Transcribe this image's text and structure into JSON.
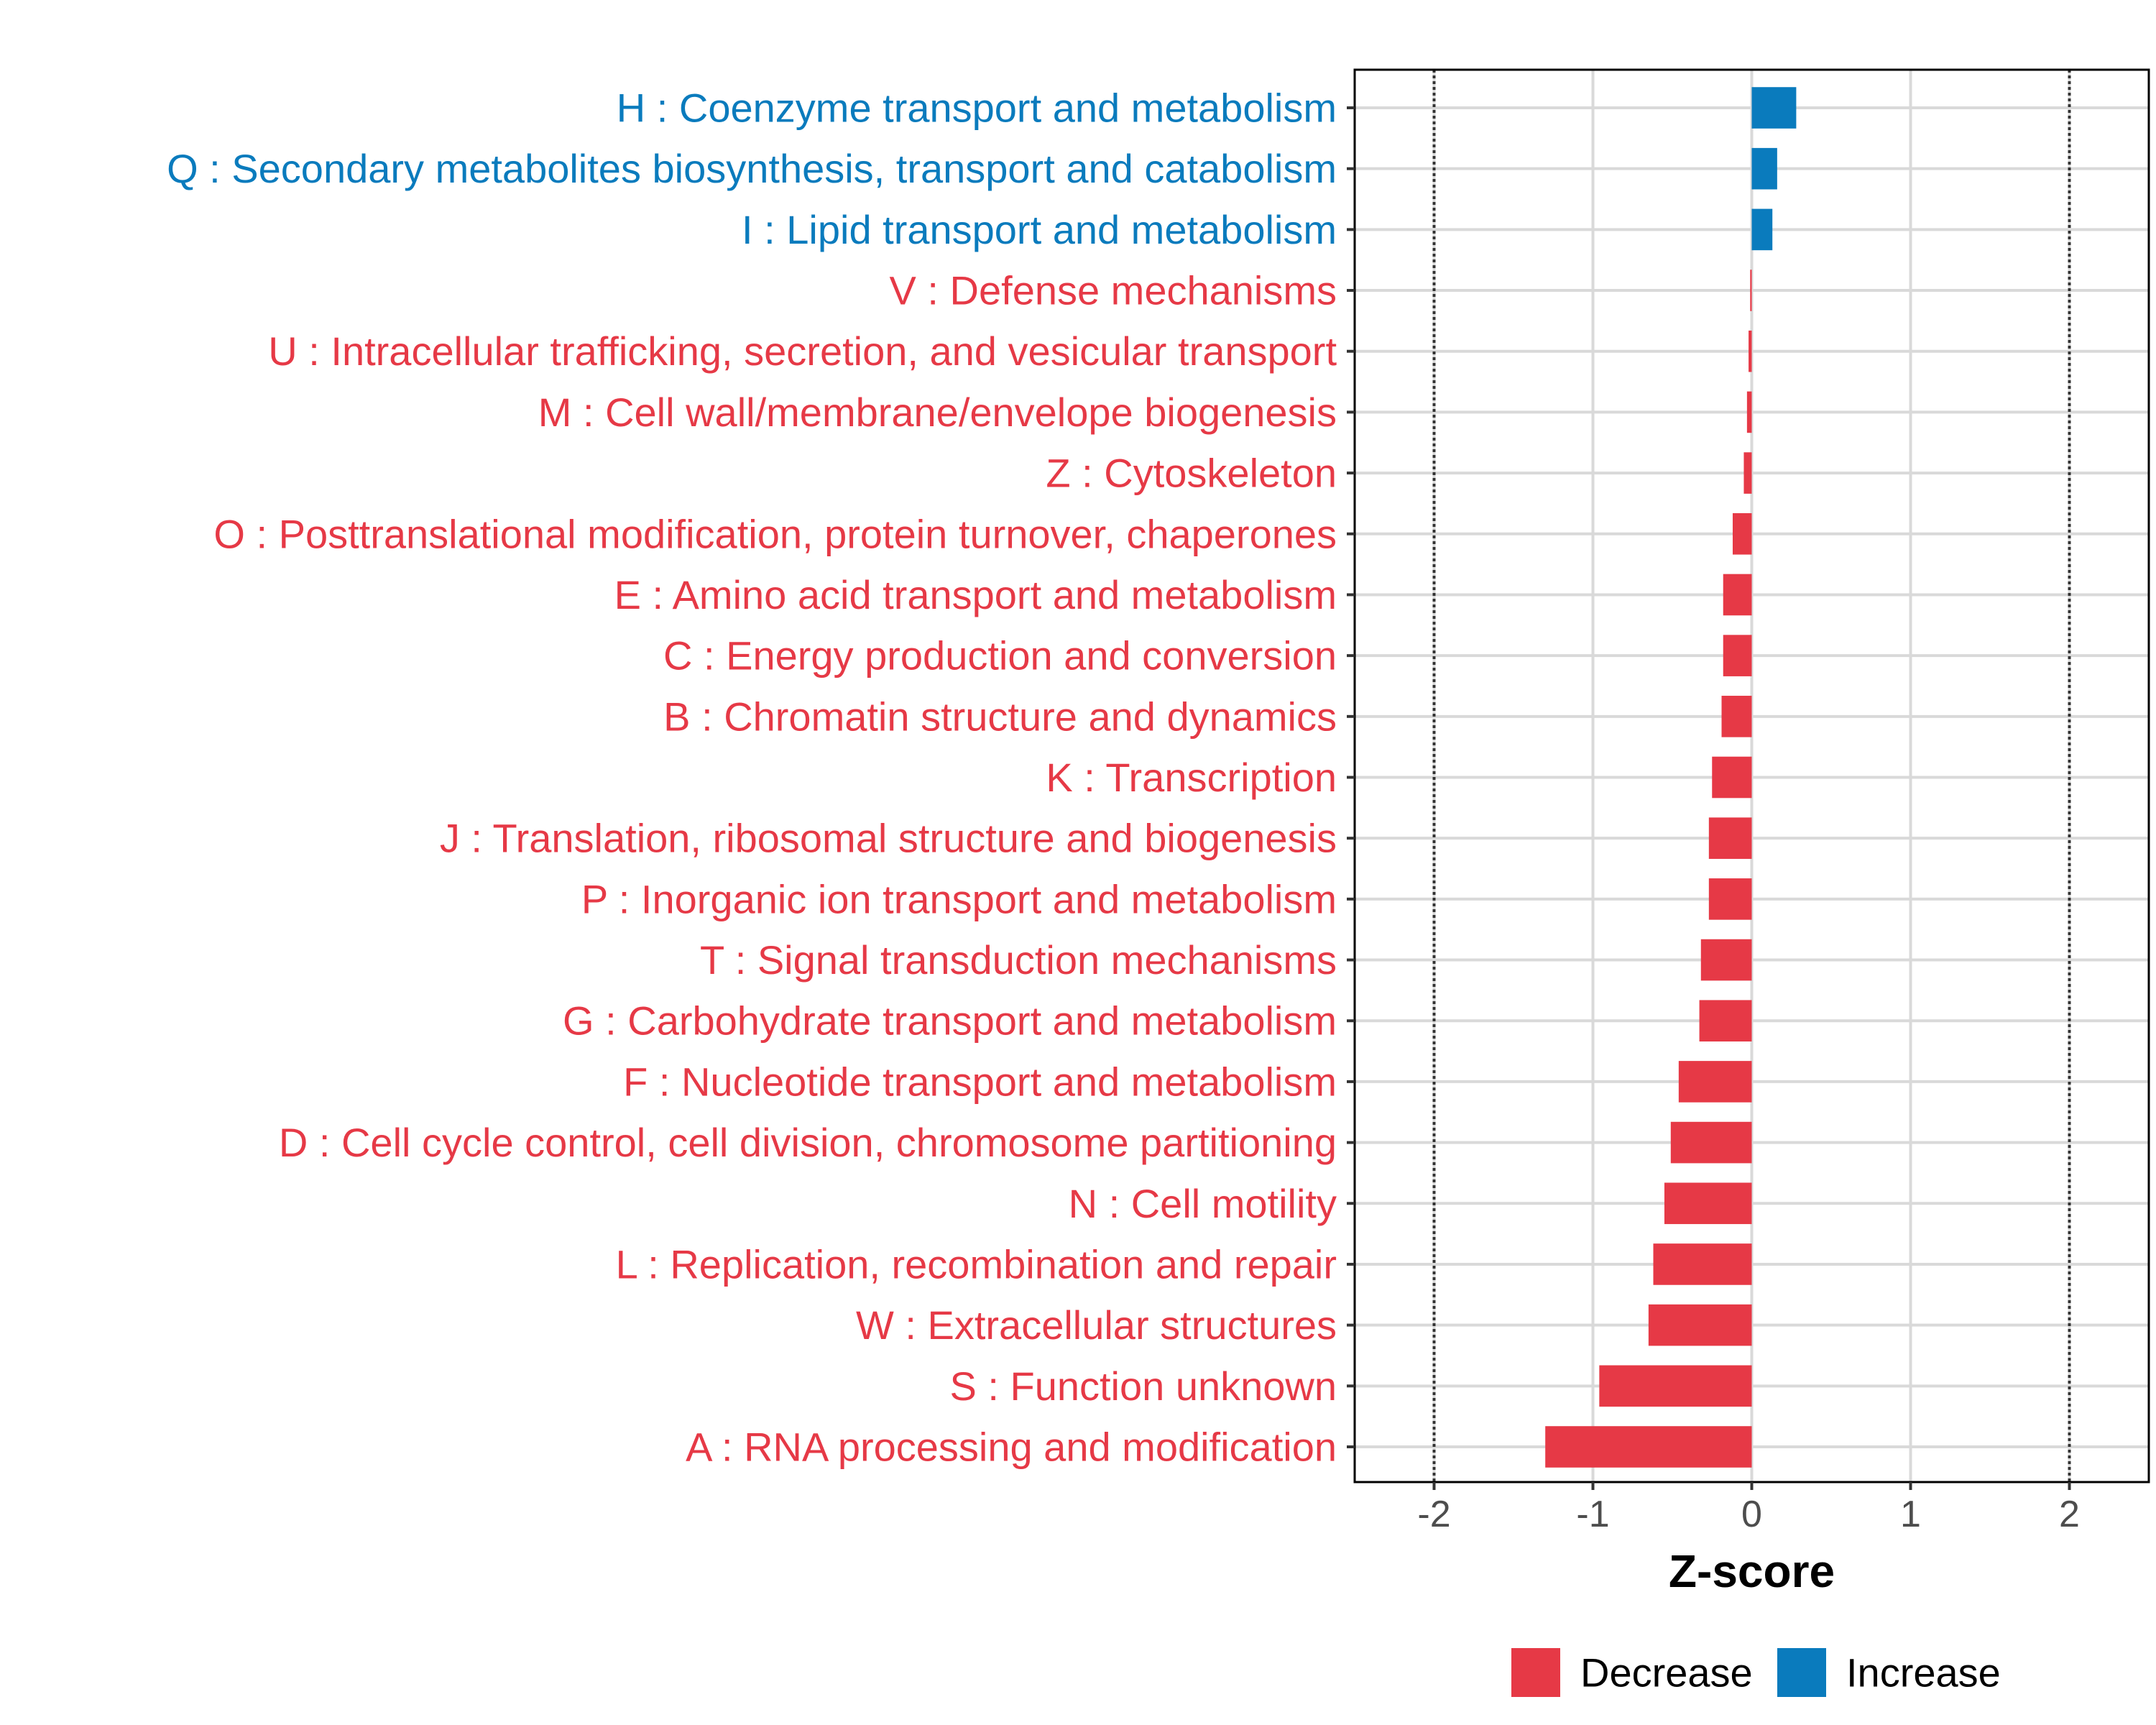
{
  "chart_data": {
    "type": "bar",
    "orientation": "horizontal",
    "title": "",
    "xlabel": "Z-score",
    "ylabel": "",
    "xlim": [
      -2.5,
      2.5
    ],
    "xticks": [
      -2,
      -1,
      0,
      1,
      2
    ],
    "xtick_labels": [
      "-2",
      "-1",
      "0",
      "1",
      "2"
    ],
    "reference_lines": [
      -2,
      2
    ],
    "grid": true,
    "categories": [
      "H : Coenzyme transport and metabolism",
      "Q : Secondary metabolites biosynthesis, transport and catabolism",
      "I : Lipid transport and metabolism",
      "V : Defense mechanisms",
      "U : Intracellular trafficking, secretion, and vesicular transport",
      "M : Cell wall/membrane/envelope biogenesis",
      "Z : Cytoskeleton",
      "O : Posttranslational modification, protein turnover, chaperones",
      "E : Amino acid transport and metabolism",
      "C : Energy production and conversion",
      "B : Chromatin structure and dynamics",
      "K : Transcription",
      "J : Translation, ribosomal structure and biogenesis",
      "P : Inorganic ion transport and metabolism",
      "T : Signal transduction mechanisms",
      "G : Carbohydrate transport and metabolism",
      "F : Nucleotide transport and metabolism",
      "D : Cell cycle control, cell division, chromosome partitioning",
      "N : Cell motility",
      "L : Replication, recombination and repair",
      "W : Extracellular structures",
      "S : Function unknown",
      "A : RNA processing and modification"
    ],
    "values": [
      0.28,
      0.16,
      0.13,
      -0.01,
      -0.02,
      -0.03,
      -0.05,
      -0.12,
      -0.18,
      -0.18,
      -0.19,
      -0.25,
      -0.27,
      -0.27,
      -0.32,
      -0.33,
      -0.46,
      -0.51,
      -0.55,
      -0.62,
      -0.65,
      -0.96,
      -1.3
    ],
    "legend": [
      {
        "name": "Decrease",
        "color": "#e63946"
      },
      {
        "name": "Increase",
        "color": "#0a7bbd"
      }
    ],
    "legend_position": "bottom",
    "colors": {
      "decrease": "#e63946",
      "increase": "#0a7bbd"
    }
  }
}
